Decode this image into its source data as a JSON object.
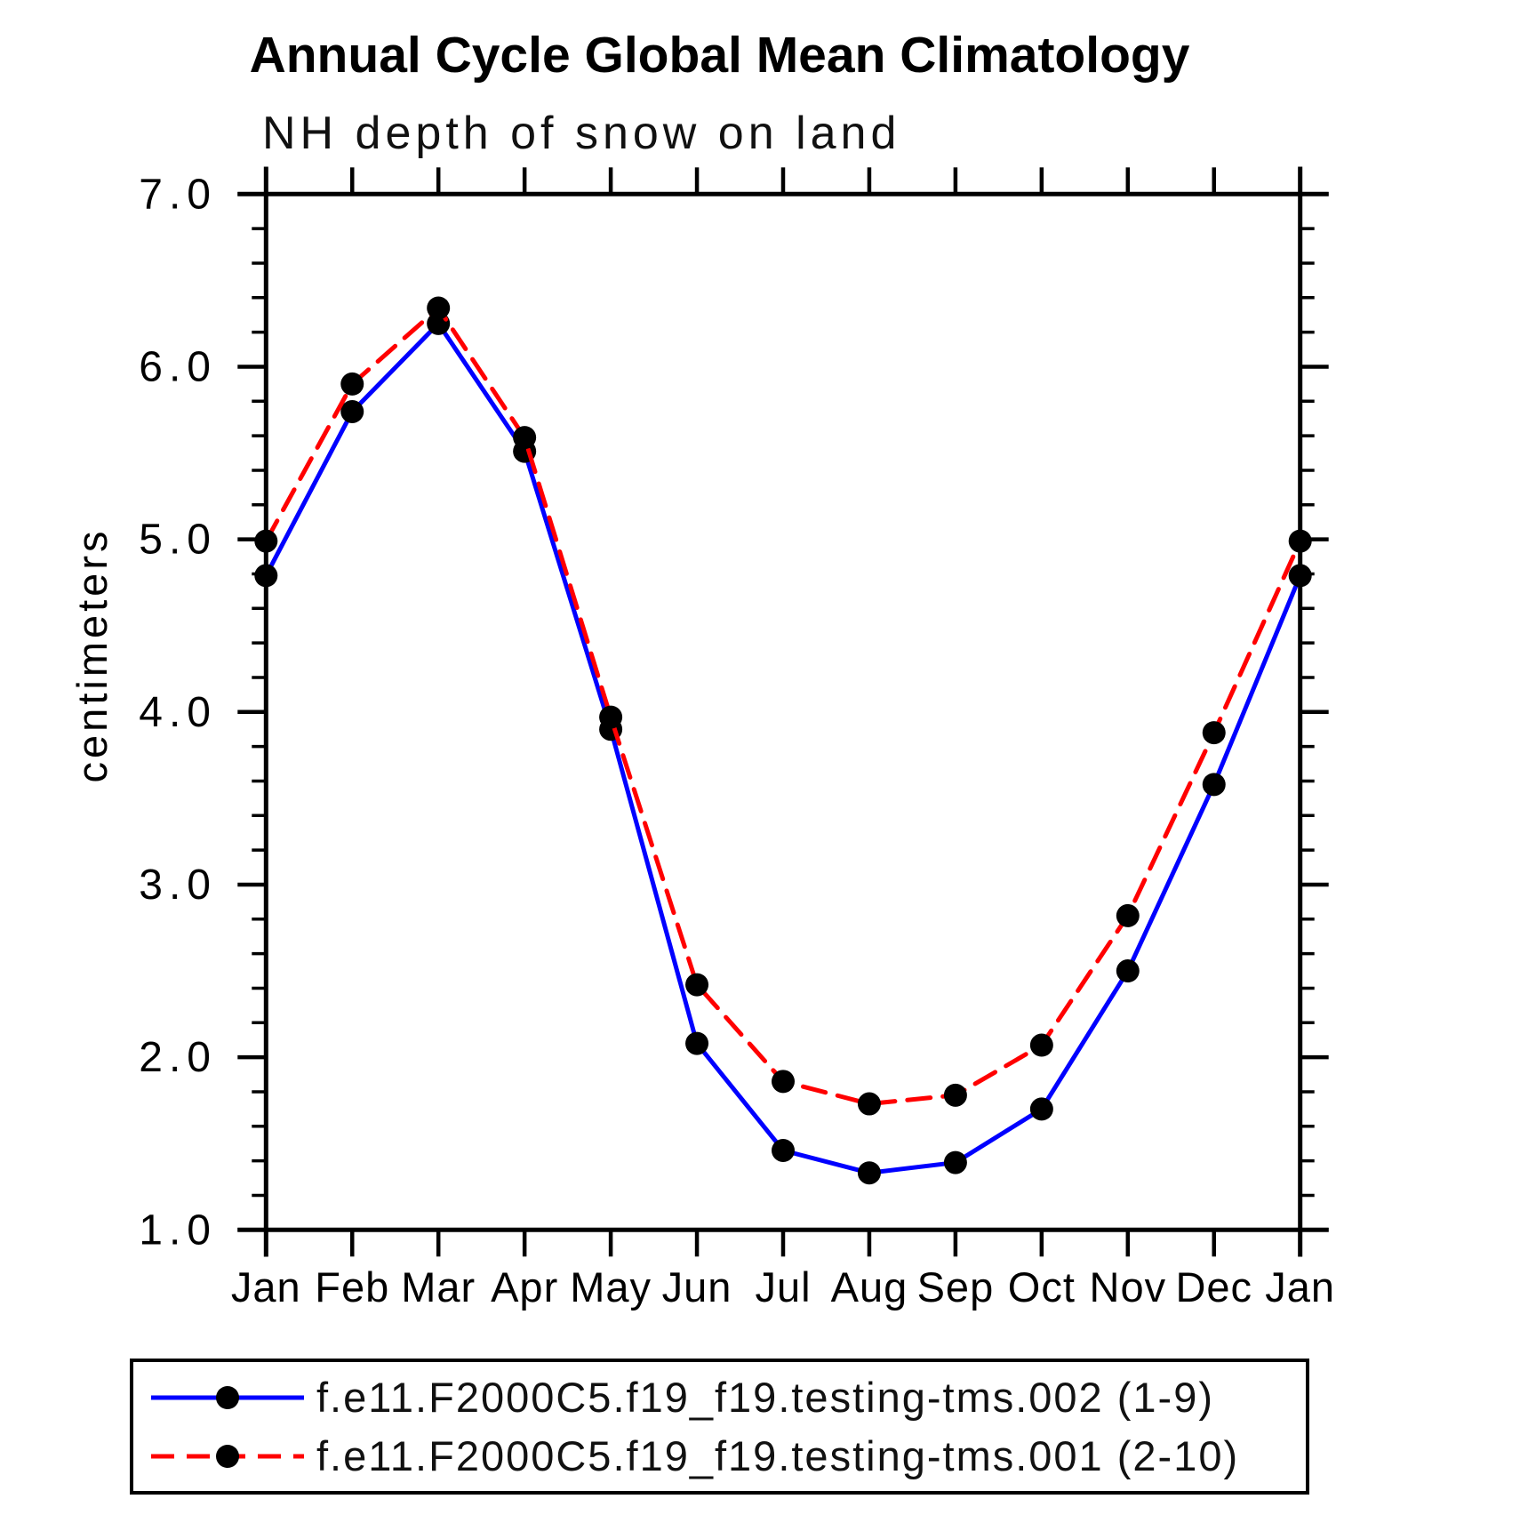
{
  "chart_data": {
    "type": "line",
    "title": "Annual Cycle Global Mean Climatology",
    "subtitle": "NH depth of snow on land",
    "xlabel": "",
    "ylabel": "centimeters",
    "categories": [
      "Jan",
      "Feb",
      "Mar",
      "Apr",
      "May",
      "Jun",
      "Jul",
      "Aug",
      "Sep",
      "Oct",
      "Nov",
      "Dec",
      "Jan"
    ],
    "ylim": [
      1.0,
      7.0
    ],
    "ytick_interval": 1.0,
    "ytick_minor_interval": 0.2,
    "ytick_labels": [
      "7.0",
      "6.0",
      "5.0",
      "4.0",
      "3.0",
      "2.0",
      "1.0"
    ],
    "grid": false,
    "frame_color": "#000000",
    "legend_position": "bottom",
    "series": [
      {
        "name": "f.e11.F2000C5.f19_f19.testing-tms.002 (1-9)",
        "color": "#0000ff",
        "style": "solid",
        "marker": "filled-circle",
        "marker_color": "#000000",
        "values": [
          4.79,
          5.74,
          6.25,
          5.51,
          3.9,
          2.08,
          1.46,
          1.33,
          1.39,
          1.7,
          2.5,
          3.58,
          4.79
        ]
      },
      {
        "name": "f.e11.F2000C5.f19_f19.testing-tms.001 (2-10)",
        "color": "#ff0000",
        "style": "dashed",
        "marker": "filled-circle",
        "marker_color": "#000000",
        "values": [
          4.99,
          5.9,
          6.34,
          5.59,
          3.97,
          2.42,
          1.86,
          1.73,
          1.78,
          2.07,
          2.82,
          3.88,
          4.99
        ]
      }
    ]
  }
}
